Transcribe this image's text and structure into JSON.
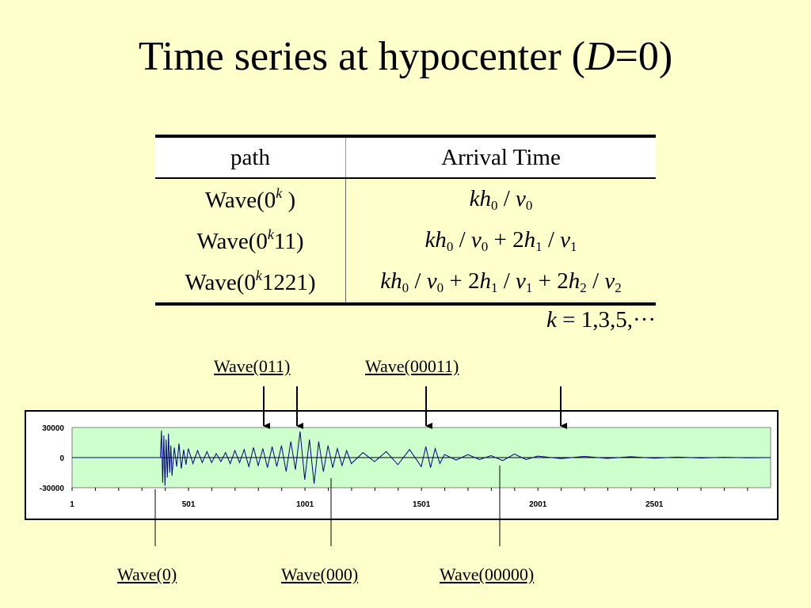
{
  "title": {
    "prefix": "Time series at hypocenter (",
    "var": "D",
    "suffix": "=0)"
  },
  "table": {
    "headers": [
      "path",
      "Arrival Time"
    ],
    "rows": [
      {
        "path_prefix": "Wave(0",
        "path_sup": "k",
        "path_suffix": " )"
      },
      {
        "path_prefix": "Wave(0",
        "path_sup": "k",
        "path_suffix": "11)"
      },
      {
        "path_prefix": "Wave(0",
        "path_sup": "k",
        "path_suffix": "1221)"
      }
    ],
    "k_note": "= 1,3,5,···",
    "k_var": "k"
  },
  "labels": {
    "top": [
      "Wave(011)",
      "Wave(00011)"
    ],
    "bottom": [
      "Wave(0)",
      "Wave(000)",
      "Wave(00000)"
    ]
  },
  "chart_data": {
    "type": "line",
    "title": "",
    "xlabel": "",
    "ylabel": "",
    "xlim": [
      1,
      3000
    ],
    "ylim": [
      -30000,
      30000
    ],
    "x_ticks": [
      1,
      501,
      1001,
      1501,
      2001,
      2501
    ],
    "y_ticks": [
      30000,
      0,
      -30000
    ],
    "grid": false,
    "plot_background": "#ccffcc",
    "line_color": "#000080",
    "series": [
      {
        "x": [
          1,
          380,
          385,
          390,
          395,
          400,
          405,
          410,
          415,
          420,
          425,
          430,
          440,
          450,
          460,
          470,
          480,
          490,
          500,
          520,
          540,
          560,
          580,
          600,
          620,
          640,
          660,
          680,
          700,
          720,
          740,
          760,
          780,
          800,
          820,
          840,
          860,
          880,
          900,
          920,
          940,
          960,
          980,
          1000,
          1020,
          1040,
          1060,
          1080,
          1100,
          1120,
          1140,
          1160,
          1180,
          1200,
          1250,
          1300,
          1350,
          1400,
          1450,
          1500,
          1520,
          1540,
          1560,
          1580,
          1600,
          1650,
          1700,
          1750,
          1800,
          1850,
          1900,
          1950,
          2000,
          2100,
          2200,
          2300,
          2400,
          2500,
          2600,
          2700,
          2800,
          2900,
          3000
        ],
        "y": [
          0,
          0,
          27000,
          -25000,
          22000,
          -28000,
          18000,
          -20000,
          24000,
          -15000,
          12000,
          -18000,
          10000,
          -9000,
          14000,
          -11000,
          8000,
          -7000,
          9000,
          -6000,
          7000,
          -5000,
          6000,
          -5000,
          4000,
          -4000,
          5000,
          -6000,
          7000,
          -5000,
          8000,
          -9000,
          10000,
          -8000,
          9000,
          -10000,
          11000,
          -9000,
          12000,
          -14000,
          16000,
          -12000,
          26000,
          -22000,
          18000,
          -26000,
          16000,
          -14000,
          12000,
          -10000,
          9000,
          -8000,
          7000,
          -6000,
          5000,
          -4000,
          6000,
          -7000,
          8000,
          -9000,
          11000,
          -10000,
          9000,
          -6000,
          3000,
          -2500,
          3000,
          -2000,
          2000,
          -3000,
          3500,
          -2000,
          1500,
          -1000,
          1200,
          -800,
          900,
          -600,
          500,
          -400,
          300,
          -200,
          0
        ]
      }
    ]
  }
}
